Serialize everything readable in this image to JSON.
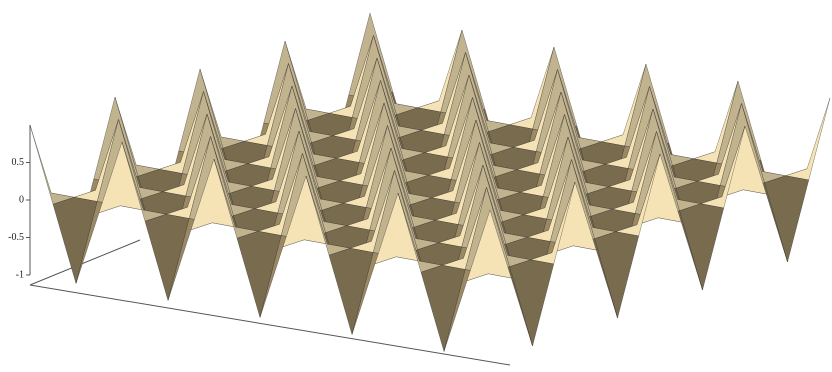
{
  "chart_data": {
    "type": "surface",
    "zlim": [
      -1,
      1
    ],
    "zticks": [
      -1,
      -0.5,
      0,
      0.5
    ],
    "z": [
      [
        1,
        0,
        -1,
        0,
        1,
        0,
        -1,
        0,
        1,
        0,
        -1,
        0,
        1,
        0,
        -1,
        0,
        1,
        0,
        -1,
        0,
        1
      ],
      [
        0,
        0,
        0,
        0,
        0,
        0,
        0,
        0,
        0,
        0,
        0,
        0,
        0,
        0,
        0,
        0,
        0,
        0,
        0,
        0,
        0
      ],
      [
        -1,
        0,
        1,
        0,
        -1,
        0,
        1,
        0,
        -1,
        0,
        1,
        0,
        -1,
        0,
        1,
        0,
        -1,
        0,
        1,
        0,
        -1
      ],
      [
        0,
        0,
        0,
        0,
        0,
        0,
        0,
        0,
        0,
        0,
        0,
        0,
        0,
        0,
        0,
        0,
        0,
        0,
        0,
        0,
        0
      ],
      [
        1,
        0,
        -1,
        0,
        1,
        0,
        -1,
        0,
        1,
        0,
        -1,
        0,
        1,
        0,
        -1,
        0,
        1,
        0,
        -1,
        0,
        1
      ],
      [
        0,
        0,
        0,
        0,
        0,
        0,
        0,
        0,
        0,
        0,
        0,
        0,
        0,
        0,
        0,
        0,
        0,
        0,
        0,
        0,
        0
      ],
      [
        -1,
        0,
        1,
        0,
        -1,
        0,
        1,
        0,
        -1,
        0,
        1,
        0,
        -1,
        0,
        1,
        0,
        -1,
        0,
        1,
        0,
        -1
      ],
      [
        0,
        0,
        0,
        0,
        0,
        0,
        0,
        0,
        0,
        0,
        0,
        0,
        0,
        0,
        0,
        0,
        0,
        0,
        0,
        0,
        0
      ],
      [
        1,
        0,
        -1,
        0,
        1,
        0,
        -1,
        0,
        1,
        0,
        -1,
        0,
        1,
        0,
        -1,
        0,
        1,
        0,
        -1,
        0,
        1
      ],
      [
        0,
        0,
        0,
        0,
        0,
        0,
        0,
        0,
        0,
        0,
        0,
        0,
        0,
        0,
        0,
        0,
        0,
        0,
        0,
        0,
        0
      ],
      [
        -1,
        0,
        1,
        0,
        -1,
        0,
        1,
        0,
        -1,
        0,
        1,
        0,
        -1,
        0,
        1,
        0,
        -1,
        0,
        1,
        0,
        -1
      ],
      [
        0,
        0,
        0,
        0,
        0,
        0,
        0,
        0,
        0,
        0,
        0,
        0,
        0,
        0,
        0,
        0,
        0,
        0,
        0,
        0,
        0
      ],
      [
        1,
        0,
        -1,
        0,
        1,
        0,
        -1,
        0,
        1,
        0,
        -1,
        0,
        1,
        0,
        -1,
        0,
        1,
        0,
        -1,
        0,
        1
      ],
      [
        0,
        0,
        0,
        0,
        0,
        0,
        0,
        0,
        0,
        0,
        0,
        0,
        0,
        0,
        0,
        0,
        0,
        0,
        0,
        0,
        0
      ],
      [
        -1,
        0,
        1,
        0,
        -1,
        0,
        1,
        0,
        -1,
        0,
        1,
        0,
        -1,
        0,
        1,
        0,
        -1,
        0,
        1,
        0,
        -1
      ],
      [
        0,
        0,
        0,
        0,
        0,
        0,
        0,
        0,
        0,
        0,
        0,
        0,
        0,
        0,
        0,
        0,
        0,
        0,
        0,
        0,
        0
      ],
      [
        1,
        0,
        -1,
        0,
        1,
        0,
        -1,
        0,
        1,
        0,
        -1,
        0,
        1,
        0,
        -1,
        0,
        1,
        0,
        -1,
        0,
        1
      ]
    ]
  }
}
